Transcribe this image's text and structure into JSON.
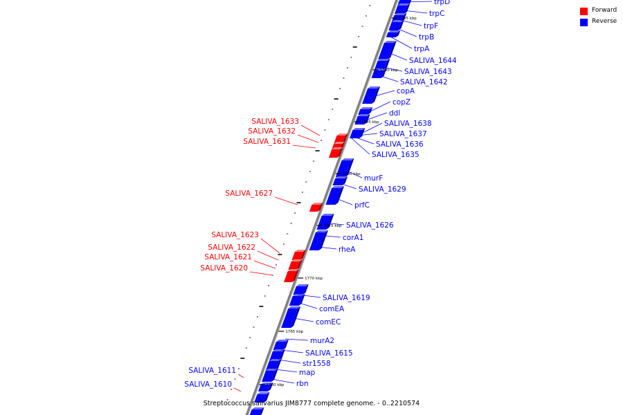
{
  "caption": "Streptococcus salivarius JIM8777 complete genome. - 0..2210574",
  "colors": {
    "forward": "#ff0000",
    "reverse": "#0000ff",
    "backbone": "#808080"
  },
  "legend": [
    {
      "label": "Forward",
      "color": "#ff0000"
    },
    {
      "label": "Reverse",
      "color": "#0000ff"
    }
  ],
  "ticks": [
    {
      "label": "1795 kbp",
      "kbp": 1795
    },
    {
      "label": "1790 kbp",
      "kbp": 1790
    },
    {
      "label": "1785 kbp",
      "kbp": 1785
    },
    {
      "label": "1780 kbp",
      "kbp": 1780
    },
    {
      "label": "1775 kbp",
      "kbp": 1775
    },
    {
      "label": "1770 kbp",
      "kbp": 1770
    },
    {
      "label": "1765 kbp",
      "kbp": 1765
    },
    {
      "label": "1760 kbp",
      "kbp": 1760
    }
  ],
  "reverse_genes": [
    "trpD",
    "trpC",
    "trpF",
    "trpB",
    "trpA",
    "SALIVA_1644",
    "SALIVA_1643",
    "SALIVA_1642",
    "copA",
    "copZ",
    "ddl",
    "SALIVA_1638",
    "SALIVA_1637",
    "SALIVA_1636",
    "SALIVA_1635",
    "murF",
    "SALIVA_1629",
    "prfC",
    "SALIVA_1626",
    "corA1",
    "rheA",
    "SALIVA_1619",
    "comEA",
    "comEC",
    "murA2",
    "SALIVA_1615",
    "str1558",
    "map",
    "rbn"
  ],
  "forward_genes": [
    "SALIVA_1633",
    "SALIVA_1632",
    "SALIVA_1631",
    "SALIVA_1627",
    "SALIVA_1623",
    "SALIVA_1622",
    "SALIVA_1621",
    "SALIVA_1620",
    "SALIVA_1611",
    "SALIVA_1610"
  ]
}
